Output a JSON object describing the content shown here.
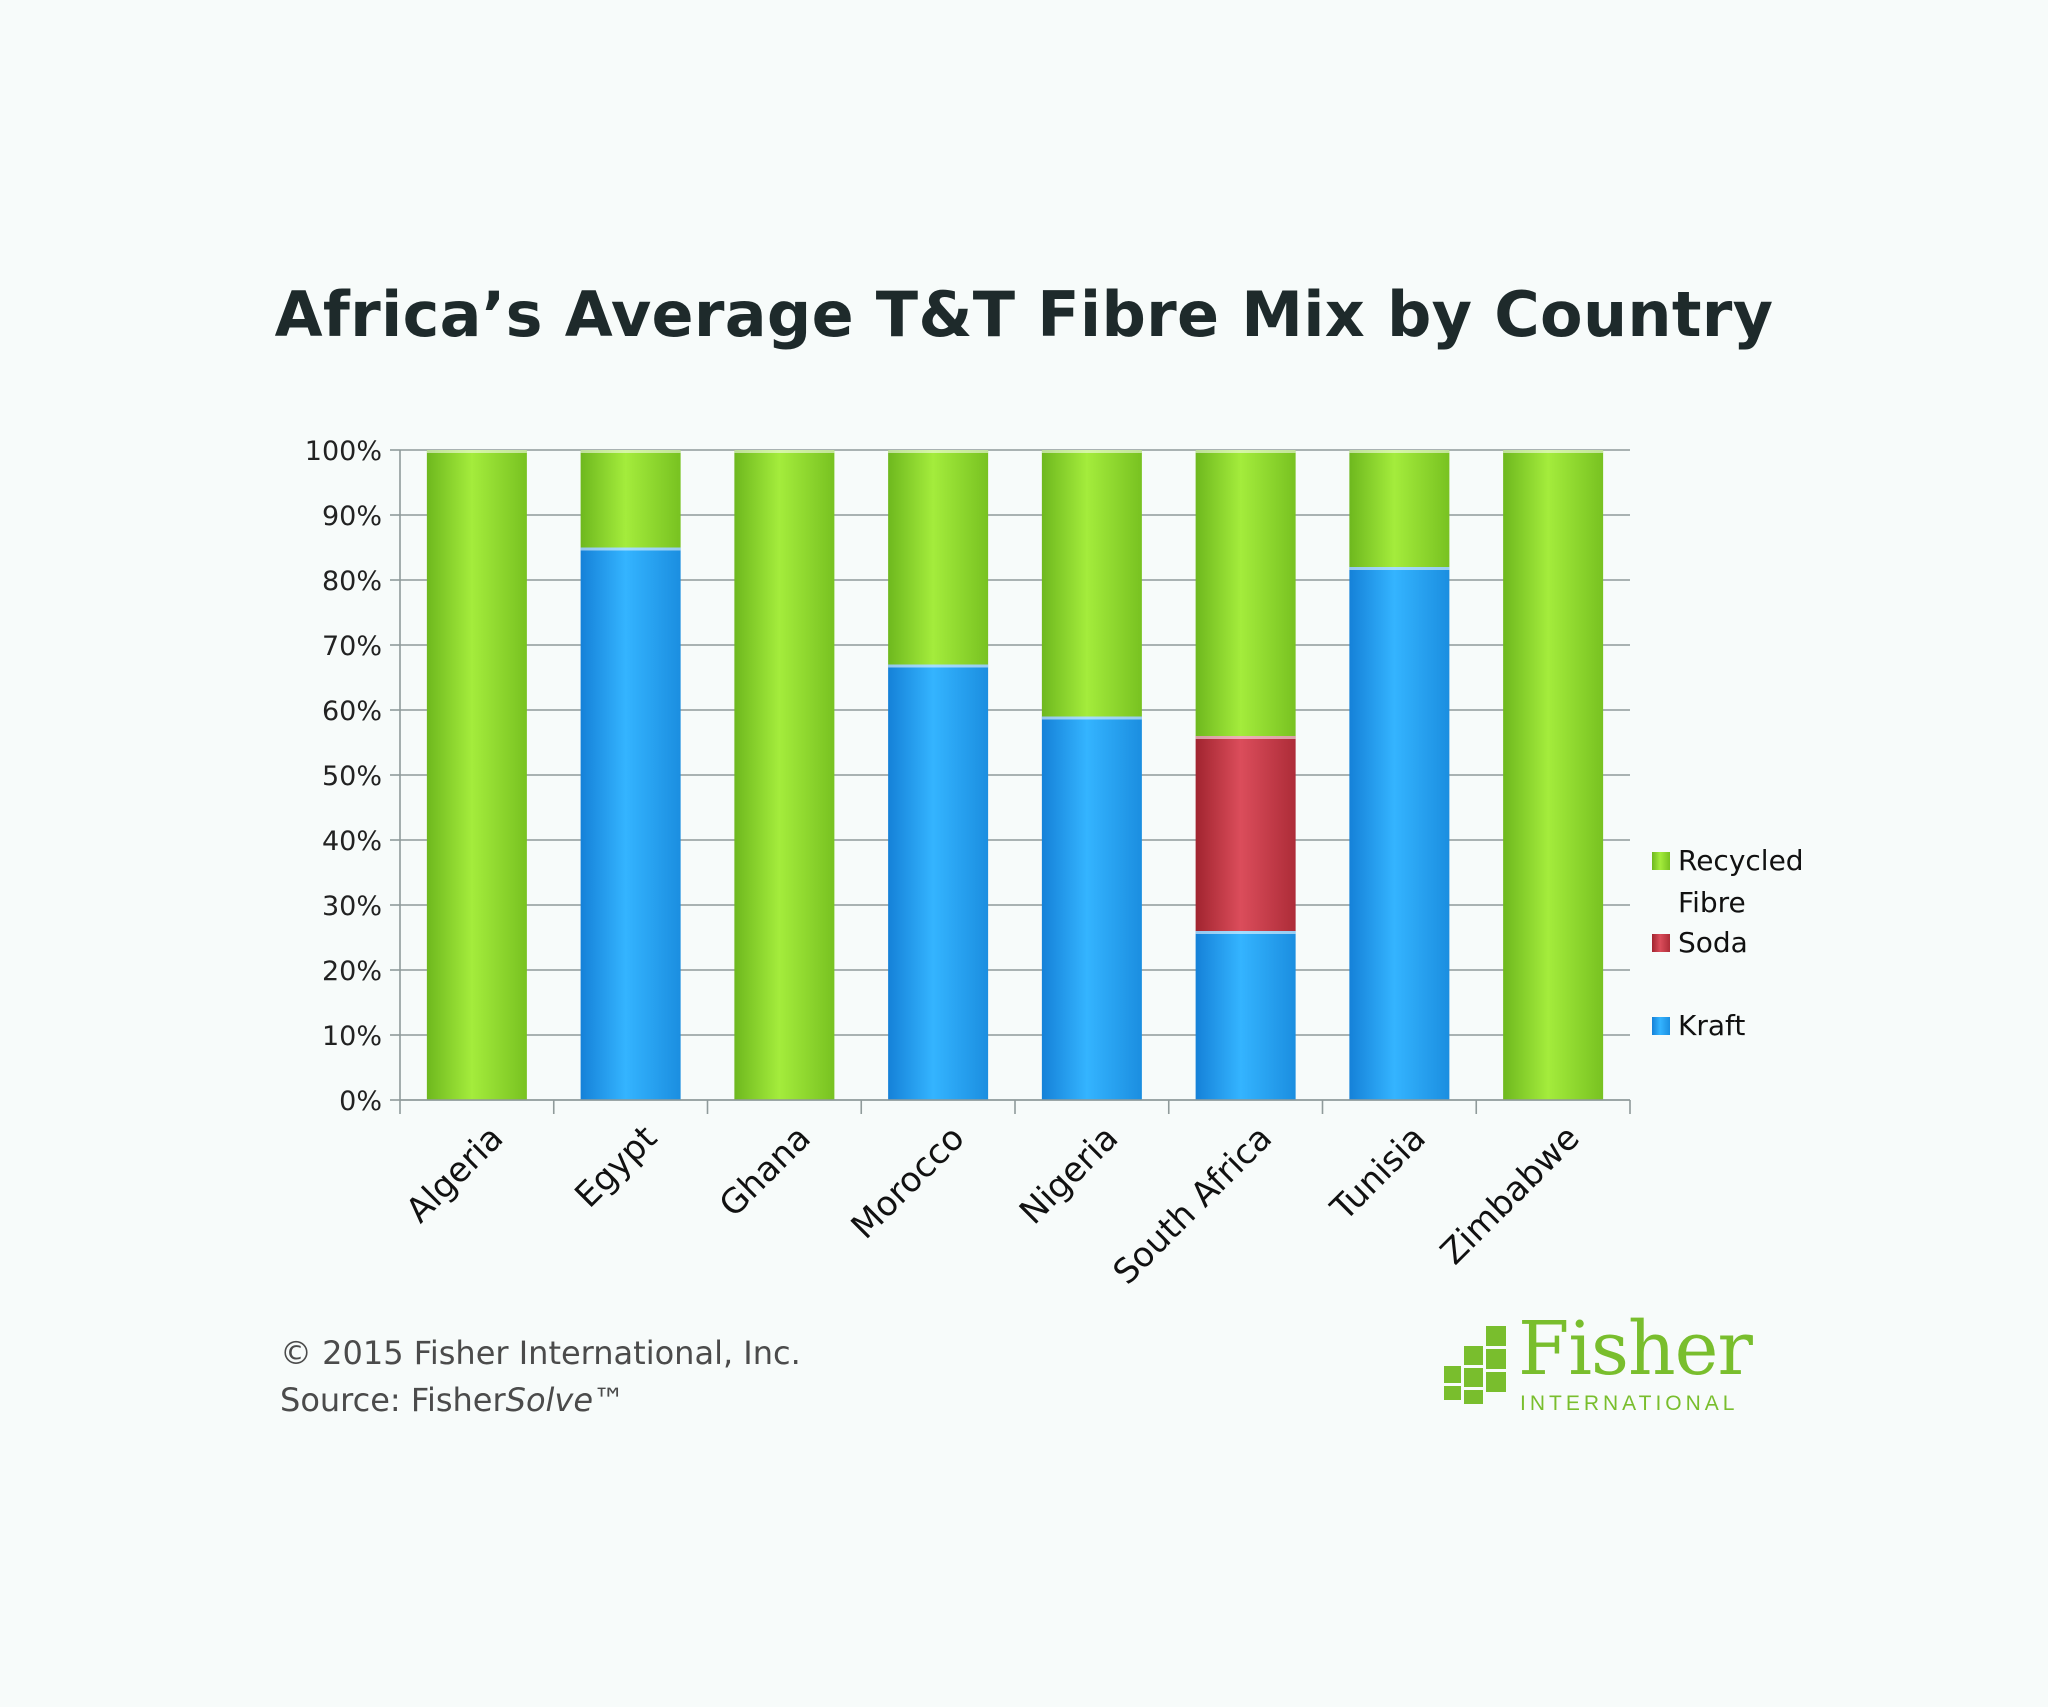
{
  "chart_data": {
    "type": "bar",
    "stacked": true,
    "title": "Africa’s Average T&T Fibre Mix by Country",
    "categories": [
      "Algeria",
      "Egypt",
      "Ghana",
      "Morocco",
      "Nigeria",
      "South Africa",
      "Tunisia",
      "Zimbabwe"
    ],
    "series": [
      {
        "name": "Kraft",
        "color": "#2aa6ef",
        "values": [
          0,
          85,
          0,
          67,
          59,
          26,
          82,
          0
        ]
      },
      {
        "name": "Soda",
        "color": "#c23744",
        "values": [
          0,
          0,
          0,
          0,
          0,
          30,
          0,
          0
        ]
      },
      {
        "name": "Recycled Fibre",
        "color": "#8fd62e",
        "values": [
          100,
          15,
          100,
          33,
          41,
          44,
          18,
          100
        ]
      }
    ],
    "ylim": [
      0,
      100
    ],
    "yticks": [
      "0%",
      "10%",
      "20%",
      "30%",
      "40%",
      "50%",
      "60%",
      "70%",
      "80%",
      "90%",
      "100%"
    ],
    "grid": true,
    "legend_position": "right",
    "legend": [
      "Recycled Fibre",
      "Soda",
      "Kraft"
    ]
  },
  "footer": {
    "copyright": "© 2015 Fisher International, Inc.",
    "source_prefix": "Source: Fisher",
    "source_italic": "Solve",
    "source_suffix": "™"
  },
  "logo": {
    "name": "Fisher",
    "sub": "INTERNATIONAL"
  }
}
